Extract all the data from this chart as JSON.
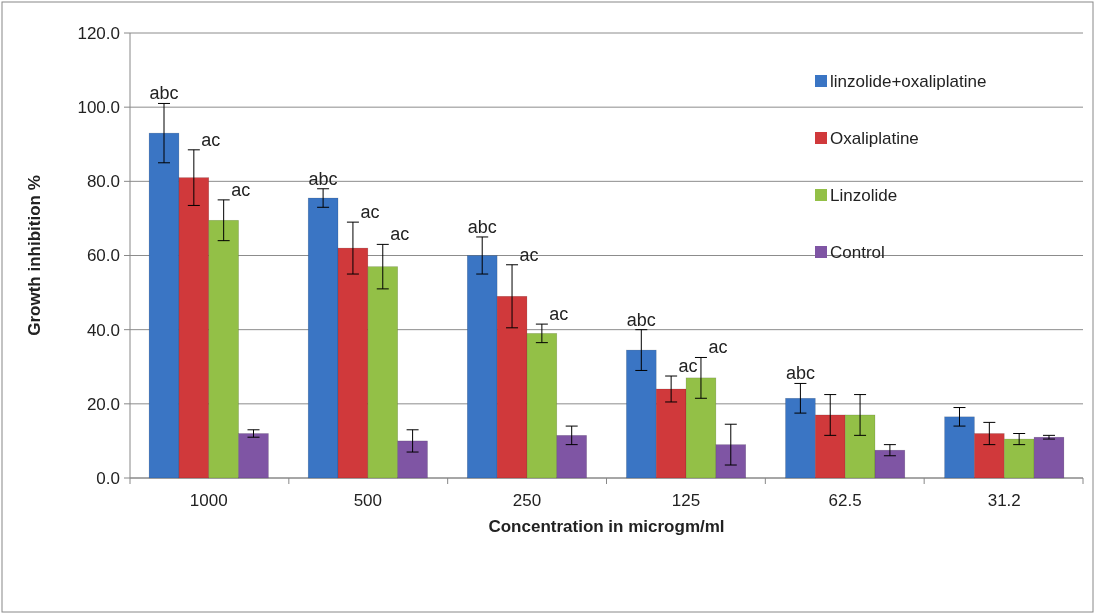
{
  "chart_data": {
    "type": "bar",
    "xlabel": "Concentration in microgm/ml",
    "ylabel": "Growth inhibition %",
    "categories": [
      "1000",
      "500",
      "250",
      "125",
      "62.5",
      "31.2"
    ],
    "series": [
      {
        "name": "linzolide+oxaliplatine",
        "color": "#3a75c4",
        "values": [
          93,
          75.5,
          60,
          34.5,
          21.5,
          16.5
        ],
        "value_labels": [
          "abc",
          "abc",
          "abc",
          "abc",
          "abc",
          null
        ],
        "errors": [
          8,
          2.5,
          5,
          5.5,
          4,
          2.5
        ]
      },
      {
        "name": "Oxaliplatine",
        "color": "#d0393b",
        "values": [
          81,
          62,
          49,
          24,
          17,
          12
        ],
        "value_labels": [
          "ac",
          "ac",
          "ac",
          "ac",
          null,
          null
        ],
        "errors": [
          7.5,
          7,
          8.5,
          3.5,
          5.5,
          3
        ]
      },
      {
        "name": "Linzolide",
        "color": "#93c047",
        "values": [
          69.5,
          57,
          39,
          27,
          17,
          10.5
        ],
        "value_labels": [
          "ac",
          "ac",
          "ac",
          "ac",
          null,
          null
        ],
        "errors": [
          5.5,
          6,
          2.5,
          5.5,
          5.5,
          1.5
        ]
      },
      {
        "name": "Control",
        "color": "#7f55a4",
        "values": [
          12,
          10,
          11.5,
          9,
          7.5,
          11
        ],
        "errors": [
          1,
          3,
          2.5,
          5.5,
          1.5,
          0.5
        ]
      }
    ],
    "ylim": [
      0,
      120
    ],
    "yticks": [
      {
        "value": 0,
        "label": "0.0"
      },
      {
        "value": 20,
        "label": "20.0"
      },
      {
        "value": 40,
        "label": "40.0"
      },
      {
        "value": 60,
        "label": "60.0"
      },
      {
        "value": 80,
        "label": "80.0"
      },
      {
        "value": 100,
        "label": "100.0"
      },
      {
        "value": 120,
        "label": "120.0"
      }
    ],
    "grid": "y",
    "legend": "top right"
  }
}
